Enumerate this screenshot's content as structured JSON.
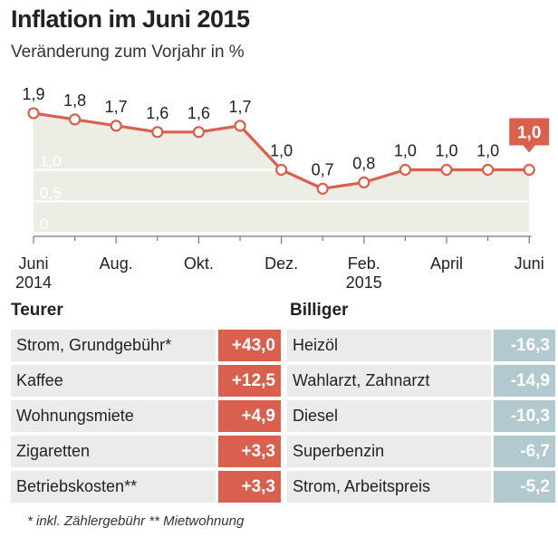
{
  "header": {
    "title": "Inflation im Juni 2015",
    "subtitle": "Veränderung zum Vorjahr in %"
  },
  "chart_data": {
    "type": "line",
    "x": [
      "Juni 2014",
      "Juli 2014",
      "Aug. 2014",
      "Sep. 2014",
      "Okt. 2014",
      "Nov. 2014",
      "Dez. 2014",
      "Jan. 2015",
      "Feb. 2015",
      "März 2015",
      "April 2015",
      "Mai 2015",
      "Juni 2015"
    ],
    "values": [
      1.9,
      1.8,
      1.7,
      1.6,
      1.6,
      1.7,
      1.0,
      0.7,
      0.8,
      1.0,
      1.0,
      1.0,
      1.0
    ],
    "labels": [
      "1,9",
      "1,8",
      "1,7",
      "1,6",
      "1,6",
      "1,7",
      "1,0",
      "0,7",
      "0,8",
      "1,0",
      "1,0",
      "1,0",
      "1,0"
    ],
    "highlight_label": "1,0",
    "ylim": [
      0,
      2.0
    ],
    "yticks": [
      {
        "value": 0,
        "label": "0"
      },
      {
        "value": 0.5,
        "label": "0,5"
      },
      {
        "value": 1.0,
        "label": "1,0"
      }
    ],
    "xticks": [
      {
        "index": 0,
        "line1": "Juni",
        "line2": "2014"
      },
      {
        "index": 2,
        "line1": "Aug.",
        "line2": ""
      },
      {
        "index": 4,
        "line1": "Okt.",
        "line2": ""
      },
      {
        "index": 6,
        "line1": "Dez.",
        "line2": ""
      },
      {
        "index": 8,
        "line1": "Feb.",
        "line2": "2015"
      },
      {
        "index": 10,
        "line1": "April",
        "line2": ""
      },
      {
        "index": 12,
        "line1": "Juni",
        "line2": ""
      }
    ],
    "grid": true,
    "colors": {
      "line": "#d9604c",
      "area": "#eceee6",
      "highlight": "#d9604c"
    }
  },
  "teurer": {
    "heading": "Teurer",
    "items": [
      {
        "label": "Strom, Grundgebühr*",
        "value": "+43,0"
      },
      {
        "label": "Kaffee",
        "value": "+12,5"
      },
      {
        "label": "Wohnungsmiete",
        "value": "+4,9"
      },
      {
        "label": "Zigaretten",
        "value": "+3,3"
      },
      {
        "label": "Betriebskosten**",
        "value": "+3,3"
      }
    ]
  },
  "billiger": {
    "heading": "Billiger",
    "items": [
      {
        "label": "Heizöl",
        "value": "-16,3"
      },
      {
        "label": "Wahlarzt, Zahnarzt",
        "value": "-14,9"
      },
      {
        "label": "Diesel",
        "value": "-10,3"
      },
      {
        "label": "Superbenzin",
        "value": "-6,7"
      },
      {
        "label": "Strom, Arbeitspreis",
        "value": "-5,2"
      }
    ]
  },
  "footnote": "* inkl. Zählergebühr  ** Mietwohnung"
}
